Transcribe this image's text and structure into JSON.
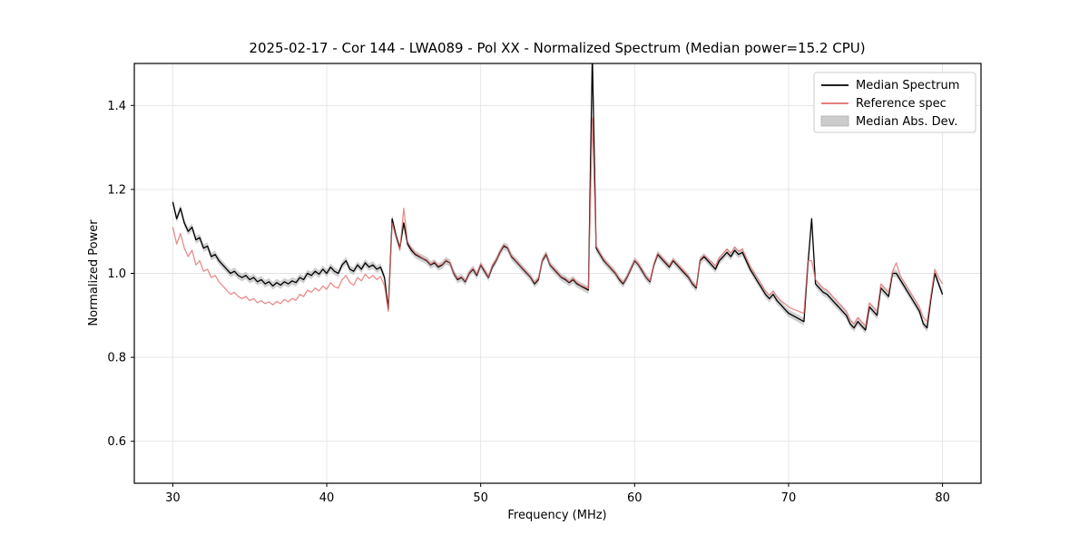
{
  "figure": {
    "title": "2025-02-17 - Cor 144 - LWA089 - Pol XX - Normalized Spectrum (Median power=15.2 CPU)",
    "xlabel": "Frequency (MHz)",
    "ylabel": "Normalized Power"
  },
  "chart_data": {
    "type": "line",
    "title": "2025-02-17 - Cor 144 - LWA089 - Pol XX - Normalized Spectrum (Median power=15.2 CPU)",
    "xlabel": "Frequency (MHz)",
    "ylabel": "Normalized Power",
    "xlim": [
      27.5,
      82.5
    ],
    "ylim": [
      0.5,
      1.5
    ],
    "xticks": [
      30,
      40,
      50,
      60,
      70,
      80
    ],
    "yticks": [
      0.6,
      0.8,
      1.0,
      1.2,
      1.4
    ],
    "grid": true,
    "legend_position": "upper right",
    "background": "#ffffff",
    "grid_color": "#e3e3e3",
    "x_start": 30.0,
    "x_step": 0.25,
    "series": [
      {
        "name": "Median Spectrum",
        "color": "#000000",
        "opacity": 1.0,
        "values": [
          1.17,
          1.13,
          1.155,
          1.12,
          1.1,
          1.11,
          1.08,
          1.085,
          1.06,
          1.065,
          1.04,
          1.045,
          1.03,
          1.02,
          1.01,
          1.0,
          1.005,
          0.995,
          0.99,
          0.995,
          0.985,
          0.99,
          0.98,
          0.985,
          0.975,
          0.98,
          0.97,
          0.978,
          0.972,
          0.98,
          0.975,
          0.982,
          0.978,
          0.99,
          0.985,
          1.0,
          0.995,
          1.005,
          0.998,
          1.01,
          1.0,
          1.015,
          1.005,
          1.0,
          1.02,
          1.03,
          1.01,
          1.005,
          1.02,
          1.01,
          1.025,
          1.015,
          1.02,
          1.01,
          1.015,
          0.99,
          0.915,
          1.13,
          1.09,
          1.06,
          1.12,
          1.07,
          1.055,
          1.045,
          1.04,
          1.035,
          1.03,
          1.02,
          1.025,
          1.015,
          1.02,
          1.03,
          1.025,
          1.0,
          0.985,
          0.99,
          0.98,
          1.0,
          1.01,
          0.995,
          1.02,
          1.005,
          0.99,
          1.015,
          1.03,
          1.05,
          1.065,
          1.06,
          1.04,
          1.03,
          1.02,
          1.01,
          1.0,
          0.99,
          0.975,
          0.985,
          1.03,
          1.045,
          1.02,
          1.01,
          1.0,
          0.99,
          0.985,
          0.978,
          0.985,
          0.975,
          0.97,
          0.965,
          0.96,
          1.52,
          1.06,
          1.045,
          1.03,
          1.02,
          1.01,
          1.0,
          0.985,
          0.975,
          0.99,
          1.01,
          1.03,
          1.02,
          1.005,
          0.99,
          0.98,
          1.02,
          1.045,
          1.035,
          1.025,
          1.015,
          1.03,
          1.02,
          1.01,
          1.0,
          0.99,
          0.975,
          0.965,
          1.03,
          1.04,
          1.03,
          1.02,
          1.01,
          1.03,
          1.04,
          1.05,
          1.04,
          1.055,
          1.045,
          1.05,
          1.03,
          1.01,
          0.995,
          0.98,
          0.965,
          0.95,
          0.94,
          0.95,
          0.935,
          0.925,
          0.915,
          0.905,
          0.9,
          0.895,
          0.89,
          0.885,
          1.02,
          1.13,
          0.975,
          0.965,
          0.955,
          0.95,
          0.94,
          0.93,
          0.92,
          0.91,
          0.9,
          0.88,
          0.87,
          0.885,
          0.875,
          0.865,
          0.92,
          0.91,
          0.9,
          0.965,
          0.955,
          0.945,
          1.0,
          1.0,
          0.985,
          0.97,
          0.955,
          0.94,
          0.925,
          0.91,
          0.88,
          0.87,
          0.94,
          1.0,
          0.975,
          0.95
        ]
      },
      {
        "name": "Reference spec",
        "color": "#e36c6c",
        "opacity": 0.78,
        "values": [
          1.11,
          1.07,
          1.095,
          1.06,
          1.04,
          1.055,
          1.02,
          1.03,
          1.005,
          1.01,
          0.99,
          0.995,
          0.98,
          0.97,
          0.96,
          0.95,
          0.955,
          0.945,
          0.94,
          0.945,
          0.935,
          0.94,
          0.93,
          0.935,
          0.928,
          0.932,
          0.925,
          0.933,
          0.928,
          0.938,
          0.932,
          0.94,
          0.936,
          0.95,
          0.945,
          0.96,
          0.955,
          0.965,
          0.958,
          0.97,
          0.962,
          0.978,
          0.968,
          0.965,
          0.985,
          0.995,
          0.978,
          0.972,
          0.99,
          0.982,
          0.998,
          0.988,
          0.995,
          0.985,
          0.992,
          0.97,
          0.91,
          1.12,
          1.085,
          1.055,
          1.155,
          1.075,
          1.06,
          1.048,
          1.042,
          1.036,
          1.032,
          1.022,
          1.028,
          1.018,
          1.022,
          1.032,
          1.026,
          1.002,
          0.988,
          0.992,
          0.982,
          1.002,
          1.012,
          0.998,
          1.022,
          1.008,
          0.992,
          1.018,
          1.032,
          1.052,
          1.068,
          1.062,
          1.042,
          1.032,
          1.022,
          1.012,
          1.002,
          0.992,
          0.978,
          0.988,
          1.032,
          1.048,
          1.022,
          1.012,
          1.002,
          0.992,
          0.988,
          0.98,
          0.988,
          0.978,
          0.972,
          0.968,
          0.963,
          1.37,
          1.065,
          1.048,
          1.033,
          1.022,
          1.012,
          1.002,
          0.988,
          0.978,
          0.992,
          1.012,
          1.032,
          1.022,
          1.008,
          0.992,
          0.982,
          1.022,
          1.048,
          1.038,
          1.028,
          1.018,
          1.033,
          1.023,
          1.013,
          1.003,
          0.993,
          0.978,
          0.968,
          1.033,
          1.043,
          1.035,
          1.027,
          1.018,
          1.038,
          1.048,
          1.058,
          1.048,
          1.063,
          1.053,
          1.058,
          1.038,
          1.018,
          1.003,
          0.988,
          0.973,
          0.958,
          0.948,
          0.958,
          0.945,
          0.935,
          0.928,
          0.92,
          0.915,
          0.912,
          0.908,
          0.905,
          1.03,
          1.03,
          0.985,
          0.975,
          0.965,
          0.96,
          0.95,
          0.94,
          0.93,
          0.92,
          0.91,
          0.89,
          0.88,
          0.895,
          0.885,
          0.875,
          0.93,
          0.92,
          0.91,
          0.975,
          0.965,
          0.955,
          1.005,
          1.025,
          0.995,
          0.98,
          0.965,
          0.95,
          0.935,
          0.92,
          0.895,
          0.885,
          0.95,
          1.01,
          0.99,
          0.975
        ]
      }
    ],
    "band": {
      "name": "Median Abs. Dev.",
      "color": "#aaaaaa",
      "opacity": 0.55,
      "around_series": 0,
      "half_width": 0.009
    }
  }
}
